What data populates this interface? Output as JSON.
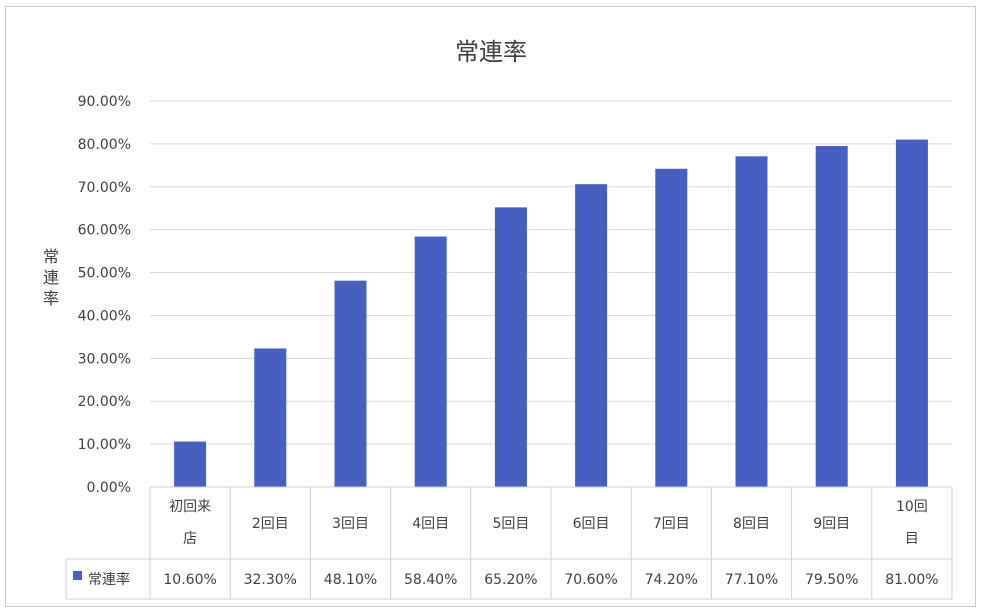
{
  "chart_data": {
    "type": "bar",
    "title": "常連率",
    "ylabel": "常連率",
    "xlabel": "",
    "ylim": [
      0,
      90
    ],
    "yticks": [
      "0.00%",
      "10.00%",
      "20.00%",
      "30.00%",
      "40.00%",
      "50.00%",
      "60.00%",
      "70.00%",
      "80.00%",
      "90.00%"
    ],
    "categories": [
      "初回来店",
      "2回目",
      "3回目",
      "4回目",
      "5回目",
      "6回目",
      "7回目",
      "8回目",
      "9回目",
      "10回目"
    ],
    "series": [
      {
        "name": "常連率",
        "color": "#4560c0",
        "values": [
          10.6,
          32.3,
          48.1,
          58.4,
          65.2,
          70.6,
          74.2,
          77.1,
          79.5,
          81.0
        ],
        "labels": [
          "10.60%",
          "32.30%",
          "48.10%",
          "58.40%",
          "65.20%",
          "70.60%",
          "74.20%",
          "77.10%",
          "79.50%",
          "81.00%"
        ]
      }
    ],
    "grid": true,
    "legend": "data-table"
  }
}
